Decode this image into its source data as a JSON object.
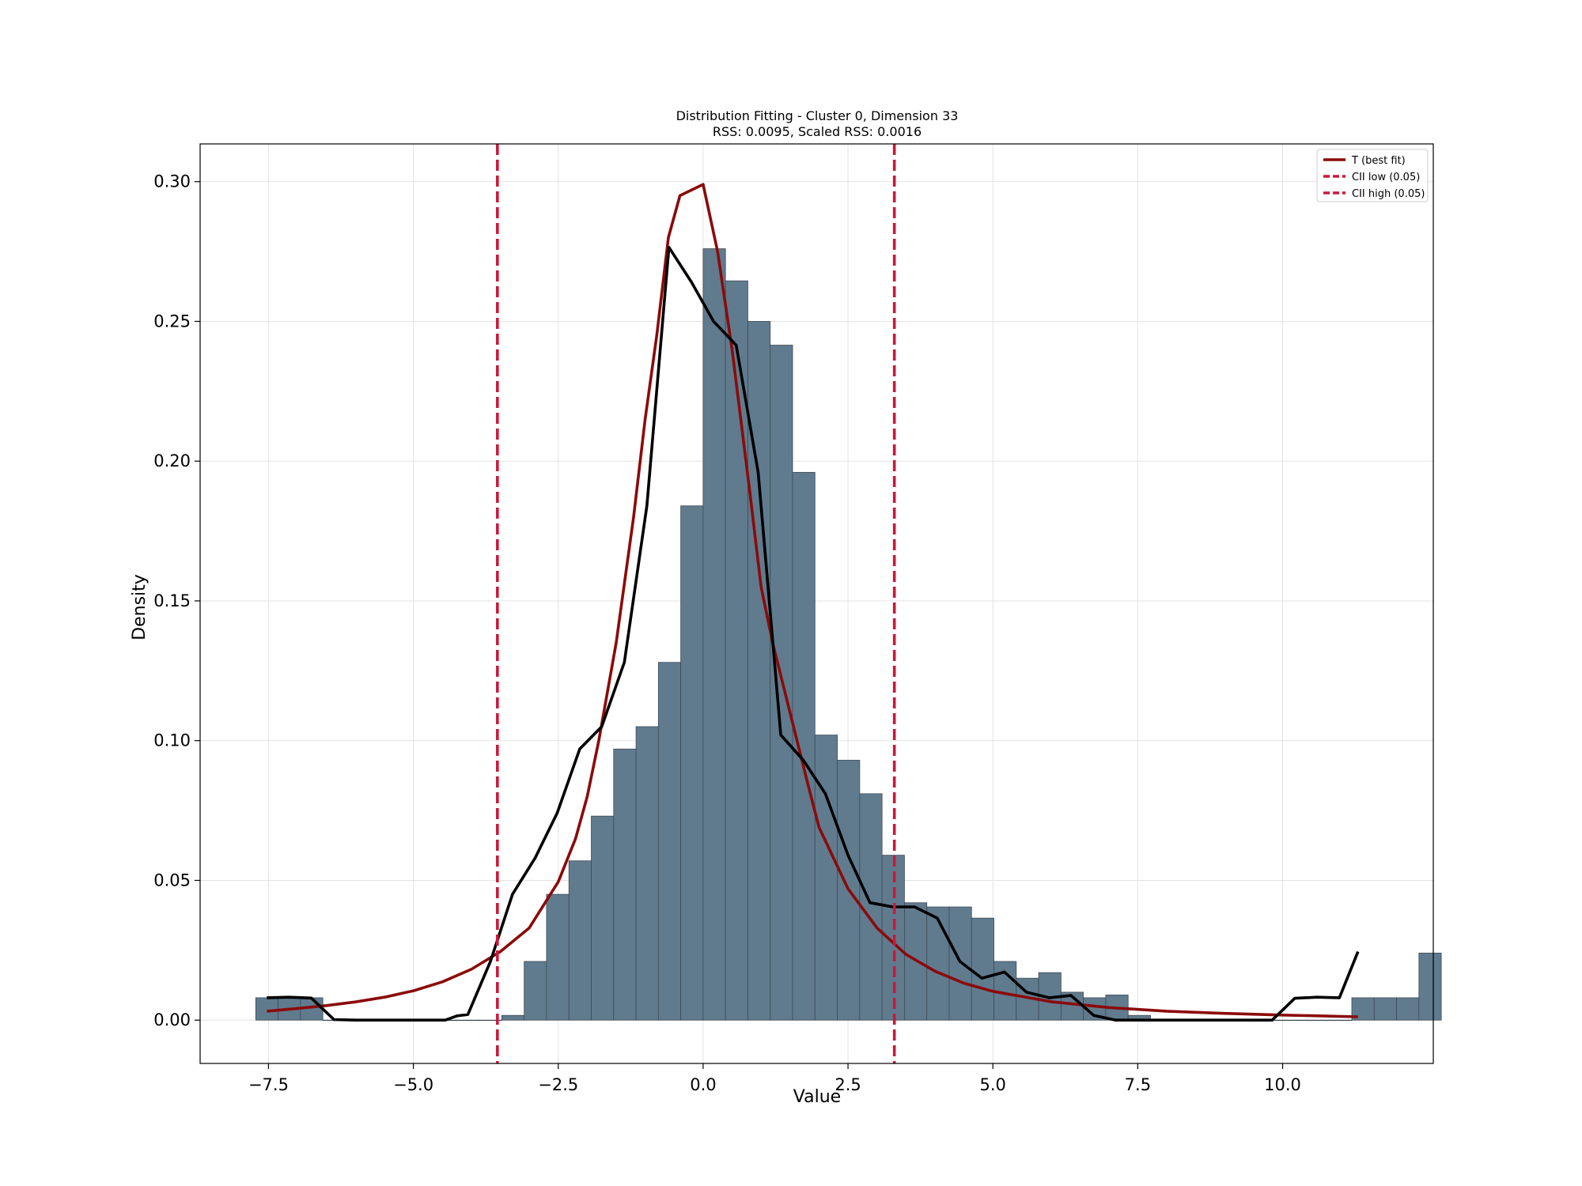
{
  "chart_data": {
    "type": "bar",
    "title": "Distribution Fitting - Cluster 0, Dimension 33",
    "subtitle": "RSS: 0.0095, Scaled RSS: 0.0016",
    "xlabel": "Value",
    "ylabel": "Density",
    "xlim": [
      -8.68,
      12.6
    ],
    "ylim": [
      -0.0155,
      0.3135
    ],
    "xticks": [
      -7.5,
      -5.0,
      -2.5,
      0.0,
      2.5,
      5.0,
      7.5,
      10.0
    ],
    "xtick_labels": [
      "−7.5",
      "−5.0",
      "−2.5",
      "0.0",
      "2.5",
      "5.0",
      "7.5",
      "10.0"
    ],
    "yticks": [
      0.0,
      0.05,
      0.1,
      0.15,
      0.2,
      0.25,
      0.3
    ],
    "ytick_labels": [
      "0.00",
      "0.05",
      "0.10",
      "0.15",
      "0.20",
      "0.25",
      "0.30"
    ],
    "grid": true,
    "legend_position": "top-right",
    "colors": {
      "histogram_fill": "#607b8e",
      "histogram_edge": "#3e4a55",
      "fit_curve": "#8b0a0a",
      "empirical_curve": "#000000",
      "ci_lines": "#c8193b"
    },
    "histogram": {
      "x_start": -7.72,
      "bin_width": 0.386,
      "values": [
        0.008,
        0.008,
        0.008,
        0.0,
        0.0,
        0.0,
        0.0,
        0.0,
        0.0,
        0.0,
        0.0,
        0.0017,
        0.021,
        0.045,
        0.057,
        0.073,
        0.097,
        0.105,
        0.128,
        0.184,
        0.276,
        0.2645,
        0.25,
        0.2415,
        0.196,
        0.102,
        0.093,
        0.081,
        0.059,
        0.042,
        0.0405,
        0.0405,
        0.0365,
        0.021,
        0.015,
        0.017,
        0.01,
        0.008,
        0.009,
        0.0017,
        0.0,
        0.0,
        0.0,
        0.0,
        0.0,
        0.0,
        0.0,
        0.0,
        0.0,
        0.008,
        0.008,
        0.008,
        0.024
      ]
    },
    "series": [
      {
        "name": "T (best fit)",
        "style": "solid",
        "x": [
          -7.53,
          -7.0,
          -6.5,
          -6.0,
          -5.5,
          -5.0,
          -4.5,
          -4.0,
          -3.5,
          -3.0,
          -2.5,
          -2.2,
          -2.0,
          -1.8,
          -1.5,
          -1.2,
          -1.0,
          -0.8,
          -0.6,
          -0.4,
          -0.3,
          0.0,
          0.25,
          0.5,
          0.8,
          1.0,
          1.2,
          1.5,
          1.8,
          2.0,
          2.5,
          3.0,
          3.5,
          4.0,
          4.5,
          5.0,
          6.0,
          7.0,
          8.0,
          9.0,
          10.0,
          11.3
        ],
        "y": [
          0.0032,
          0.0042,
          0.0052,
          0.0065,
          0.0082,
          0.0105,
          0.0137,
          0.0182,
          0.0245,
          0.033,
          0.0495,
          0.065,
          0.08,
          0.1,
          0.135,
          0.18,
          0.215,
          0.245,
          0.28,
          0.295,
          0.296,
          0.299,
          0.275,
          0.24,
          0.19,
          0.155,
          0.135,
          0.11,
          0.085,
          0.069,
          0.047,
          0.033,
          0.0235,
          0.0175,
          0.0132,
          0.0103,
          0.0066,
          0.0045,
          0.0032,
          0.0024,
          0.0018,
          0.0012
        ]
      },
      {
        "name": "",
        "style": "solid",
        "x": [
          -7.53,
          -7.15,
          -6.76,
          -6.37,
          -5.99,
          -5.6,
          -5.22,
          -4.83,
          -4.45,
          -4.25,
          -4.06,
          -3.67,
          -3.29,
          -2.9,
          -2.52,
          -2.13,
          -1.75,
          -1.36,
          -0.97,
          -0.59,
          -0.2,
          0.18,
          0.57,
          0.95,
          1.34,
          1.73,
          2.11,
          2.5,
          2.88,
          3.27,
          3.65,
          4.04,
          4.43,
          4.81,
          5.2,
          5.58,
          5.97,
          6.35,
          6.74,
          7.12,
          7.51,
          7.9,
          8.28,
          8.67,
          9.05,
          9.44,
          9.82,
          10.21,
          10.59,
          10.98,
          11.3
        ],
        "y": [
          0.008,
          0.0082,
          0.0079,
          0.0002,
          0.0,
          0.0,
          0.0,
          0.0,
          0.0,
          0.0015,
          0.002,
          0.021,
          0.045,
          0.058,
          0.074,
          0.097,
          0.105,
          0.128,
          0.184,
          0.2765,
          0.264,
          0.25,
          0.2415,
          0.196,
          0.102,
          0.093,
          0.081,
          0.059,
          0.042,
          0.0405,
          0.0405,
          0.0365,
          0.021,
          0.015,
          0.0172,
          0.01,
          0.008,
          0.0088,
          0.0017,
          0.0,
          0.0,
          0.0,
          0.0,
          0.0,
          0.0,
          0.0,
          0.0,
          0.0078,
          0.0082,
          0.008,
          0.0245
        ]
      }
    ],
    "vlines": [
      {
        "name": "CII low (0.05)",
        "x": -3.55,
        "style": "dashed"
      },
      {
        "name": "CII high (0.05)",
        "x": 3.3,
        "style": "dashed"
      }
    ],
    "legend": [
      {
        "label": "T (best fit)",
        "style": "solid",
        "color": "#8b0a0a"
      },
      {
        "label": "CII low (0.05)",
        "style": "dashed",
        "color": "#c8193b"
      },
      {
        "label": "CII high (0.05)",
        "style": "dashed",
        "color": "#c8193b"
      }
    ]
  }
}
